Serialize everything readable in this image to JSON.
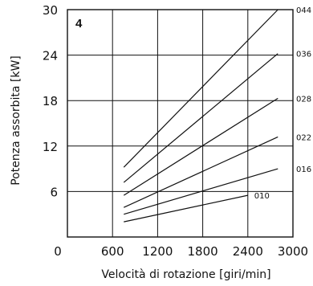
{
  "chart_data": {
    "type": "line",
    "panel_label": "4",
    "xlabel": "Velocità di rotazione [giri/min]",
    "ylabel": "Potenza assorbita [kW]",
    "xlim": [
      0,
      3000
    ],
    "ylim": [
      0,
      30
    ],
    "xticks": [
      "0",
      "600",
      "1200",
      "1800",
      "2400",
      "3000"
    ],
    "yticks": [
      "6",
      "12",
      "18",
      "24",
      "30"
    ],
    "grid": true,
    "series": [
      {
        "name": "044",
        "x": [
          750,
          2800
        ],
        "y": [
          9.2,
          30.0
        ]
      },
      {
        "name": "036",
        "x": [
          750,
          2800
        ],
        "y": [
          7.2,
          24.2
        ]
      },
      {
        "name": "028",
        "x": [
          750,
          2800
        ],
        "y": [
          5.5,
          18.3
        ]
      },
      {
        "name": "022",
        "x": [
          750,
          2800
        ],
        "y": [
          3.9,
          13.2
        ]
      },
      {
        "name": "016",
        "x": [
          750,
          2800
        ],
        "y": [
          3.0,
          9.0
        ]
      },
      {
        "name": "010",
        "x": [
          750,
          2400
        ],
        "y": [
          2.0,
          5.5
        ]
      }
    ]
  }
}
